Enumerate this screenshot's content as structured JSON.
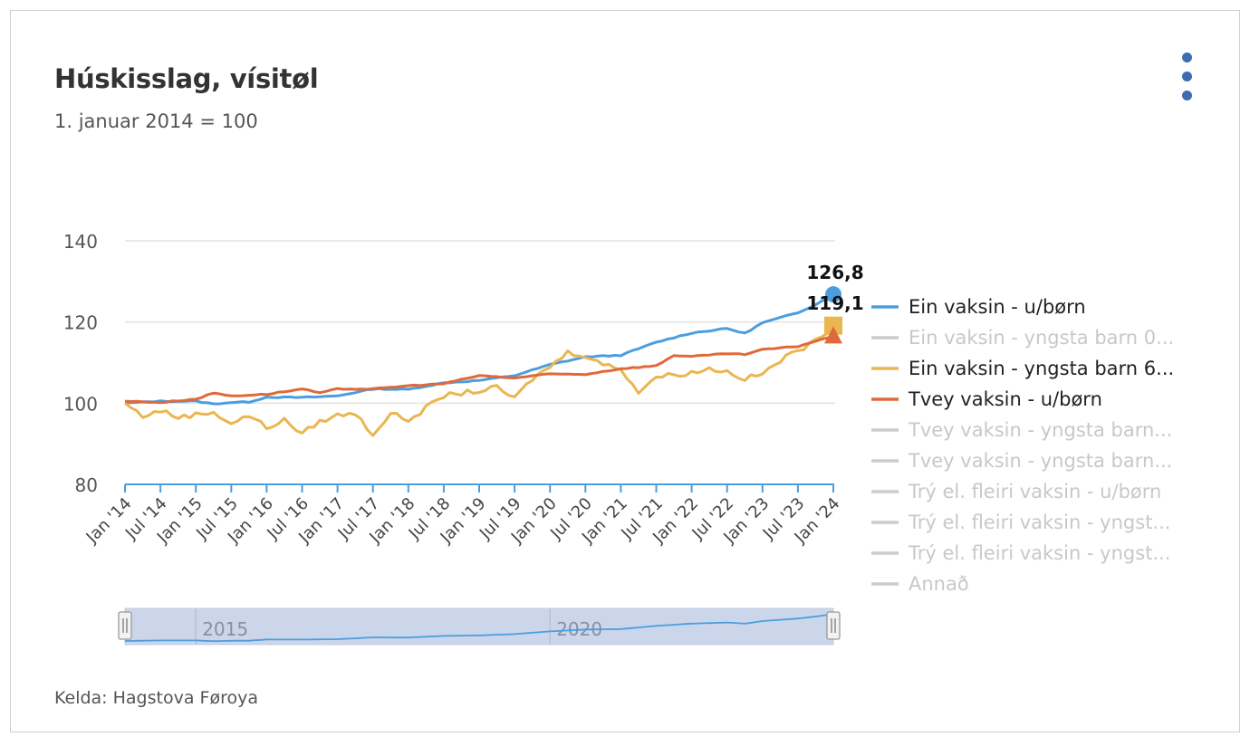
{
  "title": "Húskisslag, vísitøl",
  "subtitle": "1. januar 2014 = 100",
  "source": "Kelda: Hagstova Føroya",
  "menu_icon": "three-dots-vertical-icon",
  "colors": {
    "blue": "#4a9ee0",
    "yellow": "#eab651",
    "orange": "#e0693a",
    "inactive": "#cccccc",
    "grid": "#e2e2e2",
    "axis": "#4a9ee0"
  },
  "chart_data": {
    "type": "line",
    "title": "Húskisslag, vísitøl",
    "subtitle": "1. januar 2014 = 100",
    "xlabel": "",
    "ylabel": "",
    "ylim": [
      80,
      140
    ],
    "yticks": [
      80,
      100,
      120,
      140
    ],
    "xlim": [
      "2014-01",
      "2024-01"
    ],
    "x_tick_labels": [
      "Jan '14",
      "Jul '14",
      "Jan '15",
      "Jul '15",
      "Jan '16",
      "Jul '16",
      "Jan '17",
      "Jul '17",
      "Jan '18",
      "Jul '18",
      "Jan '19",
      "Jul '19",
      "Jan '20",
      "Jul '20",
      "Jan '21",
      "Jul '21",
      "Jan '22",
      "Jul '22",
      "Jan '23",
      "Jul '23",
      "Jan '24"
    ],
    "grid": true,
    "legend_position": "right",
    "annotations": [
      {
        "series": "Ein vaksin - u/børn",
        "label": "126,8"
      },
      {
        "series": "Ein vaksin - yngsta barn 6...",
        "label": "119,1"
      }
    ],
    "series": [
      {
        "name": "Ein vaksin - u/børn",
        "visible": true,
        "color": "#4a9ee0",
        "marker": "circle",
        "points": [
          [
            "2014-01",
            100
          ],
          [
            "2014-07",
            100.5
          ],
          [
            "2015-01",
            100.5
          ],
          [
            "2015-04",
            99.8
          ],
          [
            "2015-07",
            100.2
          ],
          [
            "2015-10",
            100.3
          ],
          [
            "2016-01",
            101.5
          ],
          [
            "2016-07",
            101.4
          ],
          [
            "2017-01",
            101.8
          ],
          [
            "2017-07",
            103.5
          ],
          [
            "2018-01",
            103.4
          ],
          [
            "2018-07",
            105
          ],
          [
            "2019-01",
            105.6
          ],
          [
            "2019-07",
            106.8
          ],
          [
            "2020-01",
            109.5
          ],
          [
            "2020-07",
            111.4
          ],
          [
            "2021-01",
            111.8
          ],
          [
            "2021-07",
            115
          ],
          [
            "2022-01",
            117.3
          ],
          [
            "2022-07",
            118.4
          ],
          [
            "2022-10",
            117.2
          ],
          [
            "2023-01",
            119.8
          ],
          [
            "2023-07",
            122.3
          ],
          [
            "2023-10",
            124.3
          ],
          [
            "2024-01",
            126.8
          ]
        ]
      },
      {
        "name": "Ein vaksin - yngsta barn 0...",
        "visible": false,
        "color": "#cccccc",
        "points": []
      },
      {
        "name": "Ein vaksin - yngsta barn 6...",
        "visible": true,
        "color": "#eab651",
        "marker": "square",
        "points": [
          [
            "2014-01",
            100
          ],
          [
            "2014-04",
            96.8
          ],
          [
            "2014-07",
            98.2
          ],
          [
            "2014-10",
            96.5
          ],
          [
            "2015-01",
            97.2
          ],
          [
            "2015-04",
            97.8
          ],
          [
            "2015-07",
            95
          ],
          [
            "2015-10",
            97
          ],
          [
            "2016-01",
            94
          ],
          [
            "2016-04",
            95.8
          ],
          [
            "2016-07",
            92.5
          ],
          [
            "2016-10",
            95.5
          ],
          [
            "2017-01",
            97
          ],
          [
            "2017-04",
            97.5
          ],
          [
            "2017-07",
            92.3
          ],
          [
            "2017-10",
            97.5
          ],
          [
            "2018-01",
            95.8
          ],
          [
            "2018-07",
            101.8
          ],
          [
            "2018-10",
            102.5
          ],
          [
            "2019-01",
            103
          ],
          [
            "2019-04",
            103.8
          ],
          [
            "2019-07",
            101.2
          ],
          [
            "2019-10",
            106
          ],
          [
            "2020-01",
            109
          ],
          [
            "2020-04",
            112.5
          ],
          [
            "2020-07",
            111.8
          ],
          [
            "2020-10",
            109.5
          ],
          [
            "2021-01",
            108.5
          ],
          [
            "2021-04",
            102.8
          ],
          [
            "2021-07",
            106.5
          ],
          [
            "2021-10",
            107
          ],
          [
            "2022-01",
            107.5
          ],
          [
            "2022-04",
            108.5
          ],
          [
            "2022-07",
            107.8
          ],
          [
            "2022-10",
            106
          ],
          [
            "2023-01",
            107.2
          ],
          [
            "2023-04",
            110.5
          ],
          [
            "2023-07",
            113
          ],
          [
            "2023-10",
            115.2
          ],
          [
            "2024-01",
            119.1
          ]
        ]
      },
      {
        "name": "Tvey vaksin - u/børn",
        "visible": true,
        "color": "#e0693a",
        "marker": "triangle",
        "points": [
          [
            "2014-01",
            100.5
          ],
          [
            "2014-07",
            100.2
          ],
          [
            "2015-01",
            101
          ],
          [
            "2015-04",
            102.5
          ],
          [
            "2015-07",
            101.8
          ],
          [
            "2016-01",
            102.2
          ],
          [
            "2016-07",
            103.5
          ],
          [
            "2016-10",
            102.5
          ],
          [
            "2017-01",
            103.5
          ],
          [
            "2017-07",
            103.5
          ],
          [
            "2018-01",
            104.3
          ],
          [
            "2018-07",
            104.8
          ],
          [
            "2019-01",
            106.8
          ],
          [
            "2019-07",
            106.2
          ],
          [
            "2020-01",
            107.2
          ],
          [
            "2020-07",
            107.1
          ],
          [
            "2021-01",
            108.5
          ],
          [
            "2021-07",
            109.2
          ],
          [
            "2021-10",
            111.8
          ],
          [
            "2022-01",
            111.5
          ],
          [
            "2022-07",
            112.2
          ],
          [
            "2022-10",
            112
          ],
          [
            "2023-01",
            113.2
          ],
          [
            "2023-07",
            114
          ],
          [
            "2023-10",
            115.3
          ],
          [
            "2024-01",
            116.5
          ]
        ]
      },
      {
        "name": "Tvey vaksin - yngsta barn...",
        "visible": false,
        "color": "#cccccc",
        "points": []
      },
      {
        "name": "Tvey vaksin - yngsta barn...",
        "visible": false,
        "color": "#cccccc",
        "points": []
      },
      {
        "name": "Trý el. fleiri vaksin - u/børn",
        "visible": false,
        "color": "#cccccc",
        "points": []
      },
      {
        "name": "Trý el. fleiri vaksin - yngst...",
        "visible": false,
        "color": "#cccccc",
        "points": []
      },
      {
        "name": "Trý el. fleiri vaksin - yngst...",
        "visible": false,
        "color": "#cccccc",
        "points": []
      },
      {
        "name": "Annað",
        "visible": false,
        "color": "#cccccc",
        "points": []
      }
    ]
  },
  "navigator": {
    "labels": [
      "2015",
      "2020"
    ],
    "label_years": [
      2015,
      2020
    ]
  }
}
